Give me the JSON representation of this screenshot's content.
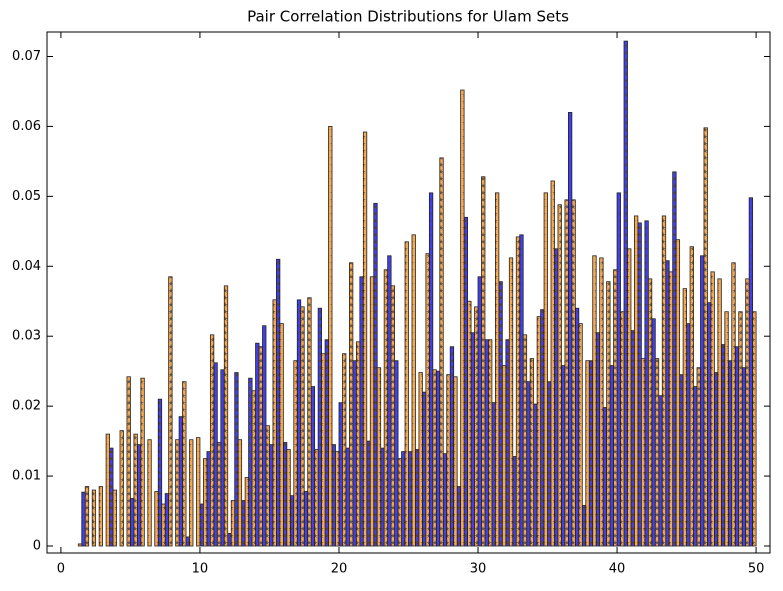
{
  "chart_data": {
    "type": "histogram",
    "title": "Pair Correlation Distributions for Ulam Sets",
    "bins": [
      0,
      0.5,
      1,
      1.5,
      2,
      2.5,
      3,
      3.5,
      4,
      4.5,
      5,
      5.5,
      6,
      6.5,
      7,
      7.5,
      8,
      8.5,
      9,
      9.5,
      10,
      10.5,
      11,
      11.5,
      12,
      12.5,
      13,
      13.5,
      14,
      14.5,
      15,
      15.5,
      16,
      16.5,
      17,
      17.5,
      18,
      18.5,
      19,
      19.5,
      20,
      20.5,
      21,
      21.5,
      22,
      22.5,
      23,
      23.5,
      24,
      24.5,
      25,
      25.5,
      26,
      26.5,
      27,
      27.5,
      28,
      28.5,
      29,
      29.5,
      30,
      30.5,
      31,
      31.5,
      32,
      32.5,
      33,
      33.5,
      34,
      34.5,
      35,
      35.5,
      36,
      36.5,
      37,
      37.5,
      38,
      38.5,
      39,
      39.5,
      40,
      40.5,
      41,
      41.5,
      42,
      42.5,
      43,
      43.5,
      44,
      44.5,
      45,
      45.5,
      46,
      46.5,
      47,
      47.5,
      48,
      48.5,
      49,
      49.5,
      50
    ],
    "series": [
      {
        "color": "#2b2bf0",
        "values": [
          0,
          0,
          0,
          0.0077,
          0,
          0,
          0,
          0.014,
          0,
          0,
          0.0068,
          0.0145,
          0,
          0,
          0.021,
          0.0075,
          0,
          0.0185,
          0.0013,
          0,
          0.006,
          0.0135,
          0.0262,
          0.0252,
          0.0018,
          0.0248,
          0.0065,
          0.024,
          0.029,
          0.0315,
          0.0145,
          0.041,
          0.0148,
          0.0072,
          0.0352,
          0.0078,
          0.0228,
          0.034,
          0.0295,
          0.0145,
          0.0205,
          0.014,
          0.0265,
          0.0385,
          0.015,
          0.049,
          0.014,
          0.0415,
          0.0265,
          0.0135,
          0.0135,
          0.0138,
          0.022,
          0.0505,
          0.025,
          0.0132,
          0.0285,
          0.0085,
          0.047,
          0.0305,
          0.0385,
          0.0295,
          0.0205,
          0.0378,
          0.0295,
          0.0128,
          0.0445,
          0.0235,
          0.0203,
          0.0338,
          0.0235,
          0.0425,
          0.0258,
          0.062,
          0.034,
          0.0058,
          0.0265,
          0.0305,
          0.0198,
          0.0258,
          0.0505,
          0.0722,
          0.0308,
          0.0462,
          0.0465,
          0.0325,
          0.0215,
          0.0408,
          0.0535,
          0.0245,
          0.0318,
          0.0228,
          0.0415,
          0.0348,
          0.0248,
          0.0288,
          0.0265,
          0.0285,
          0.0255,
          0.0498
        ]
      },
      {
        "color": "#f5a040",
        "values": [
          0,
          0,
          0.0003,
          0.0085,
          0.008,
          0.0085,
          0.016,
          0.008,
          0.0165,
          0.0242,
          0.016,
          0.024,
          0.0152,
          0.0078,
          0.006,
          0.0385,
          0.0152,
          0.0235,
          0.0152,
          0.0155,
          0.0125,
          0.0302,
          0.0148,
          0.0372,
          0.0065,
          0.0152,
          0.0098,
          0.0222,
          0.0285,
          0.0172,
          0.0352,
          0.0318,
          0.0138,
          0.0265,
          0.0342,
          0.0355,
          0.0138,
          0.0275,
          0.06,
          0.0135,
          0.0275,
          0.0405,
          0.0292,
          0.0592,
          0.0385,
          0.0255,
          0.0395,
          0.0372,
          0.0125,
          0.0435,
          0.0445,
          0.0248,
          0.0418,
          0.0252,
          0.0555,
          0.0245,
          0.0242,
          0.0652,
          0.035,
          0.0342,
          0.0528,
          0.0295,
          0.0505,
          0.0258,
          0.0412,
          0.0442,
          0.0302,
          0.0268,
          0.0328,
          0.0505,
          0.0522,
          0.0488,
          0.0495,
          0.0495,
          0.0318,
          0.0265,
          0.0415,
          0.0412,
          0.0378,
          0.0395,
          0.0335,
          0.0425,
          0.0472,
          0.0268,
          0.0382,
          0.0268,
          0.0472,
          0.0392,
          0.0438,
          0.0368,
          0.0428,
          0.0255,
          0.0598,
          0.0392,
          0.0382,
          0.0335,
          0.0405,
          0.0335,
          0.0382,
          0.0335
        ]
      }
    ],
    "xlim": [
      -1,
      51
    ],
    "ylim": [
      -0.001,
      0.0735
    ],
    "xticks": [
      0,
      10,
      20,
      30,
      40,
      50
    ],
    "yticks": [
      0,
      0.01,
      0.02,
      0.03,
      0.04,
      0.05,
      0.06,
      0.07
    ]
  }
}
